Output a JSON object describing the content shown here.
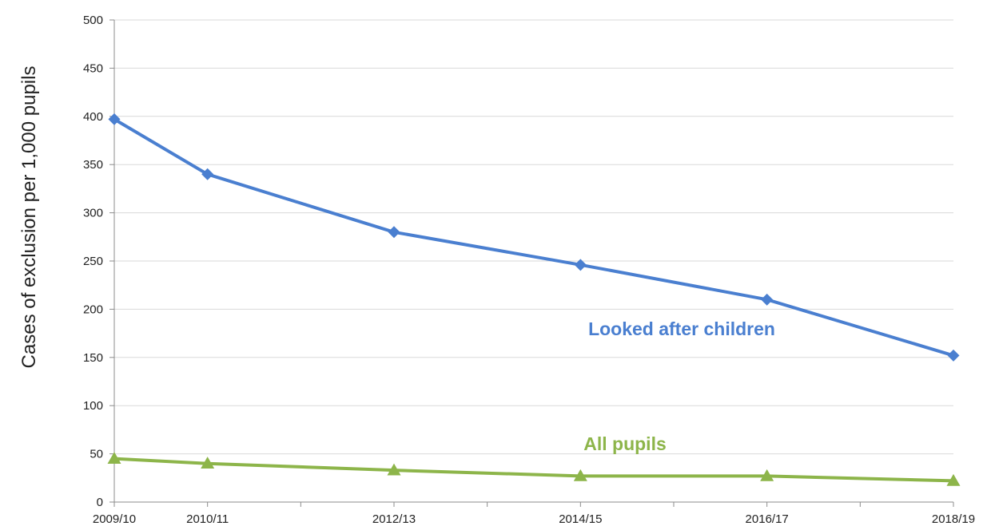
{
  "chart_data": {
    "type": "line",
    "title": "",
    "xlabel": "",
    "ylabel": "Cases of exclusion per 1,000 pupils",
    "ylim": [
      0,
      500
    ],
    "yticks": [
      0,
      50,
      100,
      150,
      200,
      250,
      300,
      350,
      400,
      450,
      500
    ],
    "x": [
      2009,
      2010,
      2011,
      2012,
      2013,
      2014,
      2015,
      2016,
      2017,
      2018
    ],
    "x_tick_labels": [
      "2009/10",
      "2010/11",
      "",
      "2012/13",
      "",
      "2014/15",
      "",
      "2016/17",
      "",
      "2018/19"
    ],
    "grid": "horizontal",
    "legend": "inline labels",
    "series": [
      {
        "name": "Looked after children",
        "color": "#4a7fd0",
        "marker": "diamond",
        "x": [
          2009,
          2010,
          2012,
          2014,
          2016,
          2018
        ],
        "values": [
          397,
          340,
          280,
          246,
          210,
          152
        ]
      },
      {
        "name": "All pupils",
        "color": "#8db54a",
        "marker": "triangle",
        "x": [
          2009,
          2010,
          2012,
          2014,
          2016,
          2018
        ],
        "values": [
          45,
          40,
          33,
          27,
          27,
          22
        ]
      }
    ]
  }
}
